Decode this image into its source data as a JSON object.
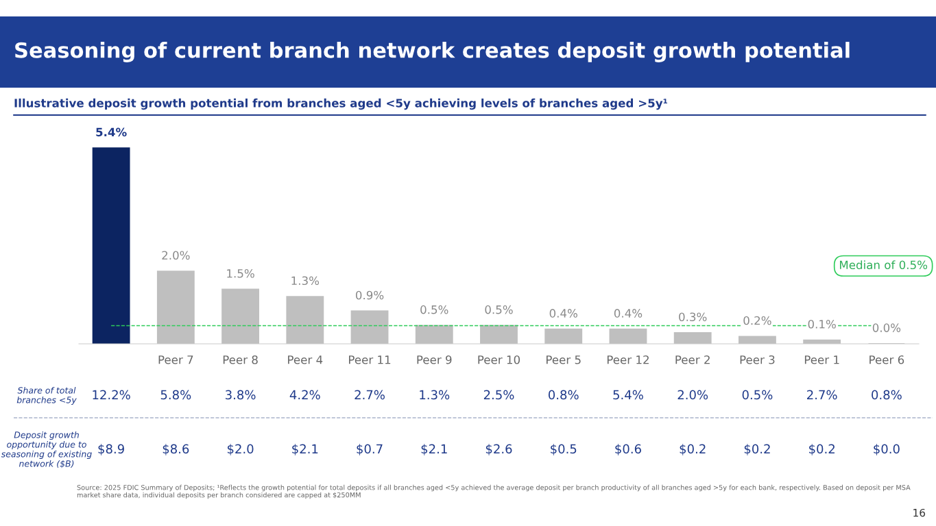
{
  "chart_data": {
    "type": "bar",
    "title": "Seasoning of current branch network creates deposit growth potential",
    "subtitle": "Illustrative deposit growth potential from branches aged <5y achieving levels of branches aged >5y¹",
    "categories": [
      null,
      "Peer 7",
      "Peer 8",
      "Peer 4",
      "Peer 11",
      "Peer 9",
      "Peer 10",
      "Peer 5",
      "Peer 12",
      "Peer 2",
      "Peer 3",
      "Peer 1",
      "Peer 6"
    ],
    "values": [
      5.4,
      2.0,
      1.5,
      1.3,
      0.9,
      0.5,
      0.5,
      0.4,
      0.4,
      0.3,
      0.2,
      0.1,
      0.0
    ],
    "colors": [
      "#0c2461",
      "#bfbfbf",
      "#bfbfbf",
      "#bfbfbf",
      "#bfbfbf",
      "#bfbfbf",
      "#bfbfbf",
      "#bfbfbf",
      "#bfbfbf",
      "#bfbfbf",
      "#bfbfbf",
      "#bfbfbf",
      "#bfbfbf"
    ],
    "value_labels": [
      "5.4%",
      "2.0%",
      "1.5%",
      "1.3%",
      "0.9%",
      "0.5%",
      "0.5%",
      "0.4%",
      "0.4%",
      "0.3%",
      "0.2%",
      "0.1%",
      "0.0%"
    ],
    "ref_lines": [
      {
        "axis": "y",
        "value": 0.5,
        "label": "Median of 0.5%",
        "color": "#2ecc5a",
        "line_style": "dashed"
      }
    ],
    "annotations": [
      "Share of total branches <5y",
      "12.2%",
      "5.8%",
      "3.8%",
      "4.2%",
      "2.7%",
      "1.3%",
      "2.5%",
      "0.8%",
      "5.4%",
      "2.0%",
      "0.5%",
      "2.7%",
      "0.8%",
      "Deposit growth opportunity due to seasoning of existing network ($B)",
      "$8.9",
      "$8.6",
      "$2.0",
      "$2.1",
      "$0.7",
      "$2.1",
      "$2.6",
      "$0.5",
      "$0.6",
      "$0.2",
      "$0.2",
      "$0.2",
      "$0.0",
      "Source: 2025 FDIC Summary of Deposits; ¹Reflects the growth potential for total deposits if all branches aged <5y achieved the average deposit per branch productivity of all branches aged >5y for each bank, respectively. Based on deposit per MSA market share data, individual deposits per branch considered are capped at $250MM",
      "16"
    ],
    "legend": false,
    "grid": false
  }
}
